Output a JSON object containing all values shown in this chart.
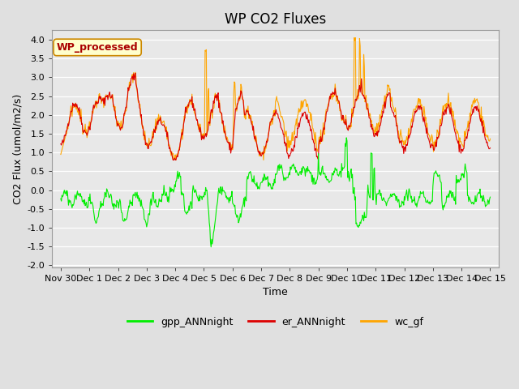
{
  "title": "WP CO2 Fluxes",
  "xlabel": "Time",
  "ylabel": "CO2 Flux (umol/m2/s)",
  "ylim": [
    -2.0,
    4.25
  ],
  "yticks": [
    -2.0,
    -1.5,
    -1.0,
    -0.5,
    0.0,
    0.5,
    1.0,
    1.5,
    2.0,
    2.5,
    3.0,
    3.5,
    4.0
  ],
  "xtick_labels": [
    "Nov 30",
    "Dec 1",
    "Dec 2",
    "Dec 3",
    "Dec 4",
    "Dec 5",
    "Dec 6",
    "Dec 7",
    "Dec 8",
    "Dec 9",
    "Dec 10",
    "Dec 11",
    "Dec 12",
    "Dec 13",
    "Dec 14",
    "Dec 15"
  ],
  "fig_bg_color": "#e0e0e0",
  "plot_bg_color": "#e8e8e8",
  "grid_color": "#ffffff",
  "line_gpp_color": "#00ee00",
  "line_er_color": "#dd0000",
  "line_wc_color": "#ffa500",
  "annotation_text": "WP_processed",
  "annotation_color": "#aa0000",
  "annotation_bg": "#ffffcc",
  "annotation_border": "#cc8800",
  "title_fontsize": 12,
  "label_fontsize": 9,
  "tick_fontsize": 8,
  "legend_fontsize": 9,
  "line_width": 0.8,
  "n_days": 15,
  "pts_per_day": 48,
  "seed": 42
}
